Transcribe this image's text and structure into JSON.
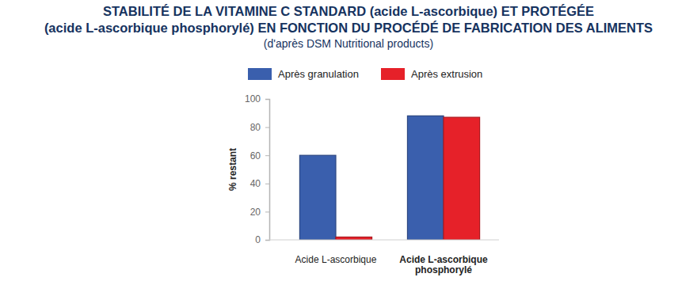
{
  "chart_data": {
    "type": "bar",
    "title": [
      "STABILITÉ DE LA VITAMINE C STANDARD (acide L-ascorbique) ET PROTÉGÉE",
      "(acide L-ascorbique phosphorylé) EN FONCTION DU PROCÉDÉ DE FABRICATION DES ALIMENTS"
    ],
    "subtitle": "(d'après DSM Nutritional products)",
    "y_label": "% restant",
    "categories": [
      "Acide L-ascorbique",
      "Acide L-ascorbique phosphorylé"
    ],
    "series": [
      {
        "name": "Après granulation",
        "color": "#3a5fad",
        "values": [
          60,
          88
        ]
      },
      {
        "name": "Après extrusion",
        "color": "#e62129",
        "values": [
          2,
          87
        ]
      }
    ],
    "ylim": [
      0,
      100
    ],
    "yticks": [
      0,
      20,
      40,
      60,
      80,
      100
    ],
    "grid": false,
    "legend": "top",
    "data_labels": false
  }
}
